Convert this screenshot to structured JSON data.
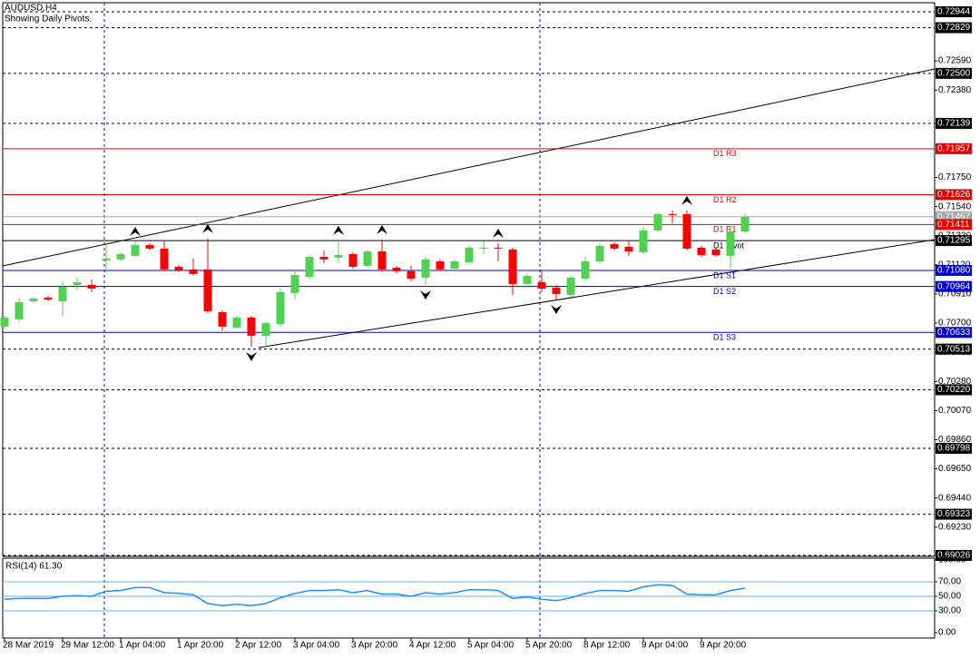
{
  "chart_data": [
    {
      "type": "candlestick",
      "title": "AUDUSD,H4",
      "subtitle": "Showing Daily Pivots.",
      "categories": [
        "28 Mar 2019",
        null,
        null,
        null,
        "29 Mar 12:00",
        null,
        null,
        null,
        "1 Apr 04:00",
        null,
        null,
        null,
        "1 Apr 20:00",
        null,
        null,
        null,
        "2 Apr 12:00",
        null,
        null,
        null,
        "3 Apr 04:00",
        null,
        null,
        null,
        "3 Apr 20:00",
        null,
        null,
        null,
        "4 Apr 12:00",
        null,
        null,
        null,
        "5 Apr 04:00",
        null,
        null,
        null,
        "5 Apr 20:00",
        null,
        null,
        null,
        "8 Apr 12:00",
        null,
        null,
        null,
        "9 Apr 04:00",
        null,
        null,
        null,
        "9 Apr 20:00",
        null,
        null,
        null
      ],
      "open": [
        0.70675,
        0.70727,
        0.70857,
        0.70884,
        0.70857,
        0.70975,
        0.70975,
        0.71152,
        0.71159,
        0.71185,
        0.71263,
        0.71237,
        0.71106,
        0.71087,
        0.71087,
        0.70779,
        0.70668,
        0.7074,
        0.70609,
        0.70694,
        0.70917,
        0.71034,
        0.71178,
        0.71172,
        0.71198,
        0.71113,
        0.71217,
        0.711,
        0.71074,
        0.71028,
        0.71145,
        0.71093,
        0.71139,
        0.71237,
        0.71244,
        0.71231,
        0.70982,
        0.70995,
        0.70956,
        0.70904,
        0.71021,
        0.71145,
        0.7127,
        0.7125,
        0.71211,
        0.71368,
        0.71486,
        0.71486,
        0.71244,
        0.71231,
        0.71185,
        0.71361
      ],
      "high": [
        0.70753,
        0.70884,
        0.7089,
        0.70897,
        0.71002,
        0.71028,
        0.71015,
        0.71263,
        0.71211,
        0.71289,
        0.71276,
        0.71289,
        0.71119,
        0.71165,
        0.71309,
        0.70792,
        0.70753,
        0.70753,
        0.70707,
        0.70949,
        0.7108,
        0.71191,
        0.71224,
        0.71296,
        0.71211,
        0.71231,
        0.71302,
        0.71113,
        0.71113,
        0.71178,
        0.71159,
        0.71159,
        0.71257,
        0.71289,
        0.71276,
        0.71244,
        0.71054,
        0.7108,
        0.70975,
        0.71041,
        0.71178,
        0.71276,
        0.71283,
        0.71289,
        0.71394,
        0.71499,
        0.71512,
        0.71512,
        0.71257,
        0.71244,
        0.71394,
        0.71492
      ],
      "low": [
        0.70662,
        0.70707,
        0.70845,
        0.70857,
        0.70753,
        0.70936,
        0.70923,
        0.71067,
        0.71145,
        0.71178,
        0.71224,
        0.7108,
        0.71067,
        0.71041,
        0.70773,
        0.70642,
        0.70662,
        0.70531,
        0.70524,
        0.70675,
        0.7087,
        0.71021,
        0.71132,
        0.71132,
        0.71093,
        0.711,
        0.71067,
        0.71061,
        0.71002,
        0.70975,
        0.7108,
        0.7108,
        0.71132,
        0.71198,
        0.71145,
        0.70904,
        0.70975,
        0.70923,
        0.7087,
        0.7089,
        0.71002,
        0.71132,
        0.71224,
        0.71185,
        0.71198,
        0.71355,
        0.7142,
        0.71224,
        0.71178,
        0.71178,
        0.711,
        0.71348
      ],
      "close": [
        0.7074,
        0.70851,
        0.70877,
        0.7087,
        0.70962,
        0.70995,
        0.70949,
        0.71165,
        0.71198,
        0.71263,
        0.71237,
        0.71087,
        0.7108,
        0.71054,
        0.70786,
        0.70675,
        0.7074,
        0.70609,
        0.70701,
        0.70923,
        0.71047,
        0.71178,
        0.71159,
        0.71191,
        0.71106,
        0.71217,
        0.71087,
        0.71074,
        0.71021,
        0.71159,
        0.71087,
        0.71145,
        0.71244,
        0.71244,
        0.71237,
        0.70982,
        0.71041,
        0.70949,
        0.7091,
        0.71028,
        0.71145,
        0.71257,
        0.71237,
        0.71217,
        0.71368,
        0.71486,
        0.71479,
        0.71237,
        0.71191,
        0.71191,
        0.71361,
        0.71467
      ],
      "up_color": "#4fd24f",
      "down_color": "#ff0000",
      "ylim": [
        0.69026,
        0.73009
      ],
      "yticks": [
        {
          "value": 0.7259,
          "label": "0.72590"
        },
        {
          "value": 0.7238,
          "label": "0.72380"
        },
        {
          "value": 0.7175,
          "label": "0.71750"
        },
        {
          "value": 0.7154,
          "label": "0.71540"
        },
        {
          "value": 0.7133,
          "label": "0.71330"
        },
        {
          "value": 0.7112,
          "label": "0.71120"
        },
        {
          "value": 0.7091,
          "label": "0.70910"
        },
        {
          "value": 0.707,
          "label": "0.70700"
        },
        {
          "value": 0.7049,
          "label": "0.70490"
        },
        {
          "value": 0.7028,
          "label": "0.70280"
        },
        {
          "value": 0.7007,
          "label": "0.70070"
        },
        {
          "value": 0.6986,
          "label": "0.69860"
        },
        {
          "value": 0.6965,
          "label": "0.69650"
        },
        {
          "value": 0.6944,
          "label": "0.69440"
        },
        {
          "value": 0.6923,
          "label": "0.69230"
        }
      ],
      "levels": [
        {
          "value": 0.72944
        },
        {
          "value": 0.72829
        },
        {
          "value": 0.725,
          "label": "0.72500"
        },
        {
          "value": 0.72139
        },
        {
          "value": 0.70513
        },
        {
          "value": 0.7022,
          "label": "0.70220"
        },
        {
          "value": 0.69798
        },
        {
          "value": 0.69323
        },
        {
          "value": 0.69026
        }
      ],
      "level_color": "#000000",
      "pivots": [
        {
          "name": "D1 R3",
          "value": 0.71957,
          "color": "#e00000"
        },
        {
          "name": "D1 R2",
          "value": 0.71626,
          "color": "#e00000"
        },
        {
          "name": "D1 R1",
          "value": 0.71411,
          "color": "#e00000"
        },
        {
          "name": "D1 Pivot",
          "value": 0.71295,
          "color": "#000000"
        },
        {
          "name": "D1 S1",
          "value": 0.7108,
          "label": "0.71080",
          "color": "#0000cc"
        },
        {
          "name": "D1 S2",
          "value": 0.70964,
          "color": "#0000cc"
        },
        {
          "name": "D1 S3",
          "value": 0.70633,
          "color": "#0000cc"
        }
      ],
      "current_price": {
        "value": 0.71467,
        "color": "#a8a8a8"
      },
      "fractals_up": [
        9,
        14,
        23,
        26,
        34,
        47
      ],
      "fractals_down": [
        17,
        29,
        38
      ]
    },
    {
      "type": "line",
      "title": "RSI(14) 61.30",
      "values": [
        46,
        47,
        47,
        47,
        50,
        51,
        50,
        57,
        58,
        62,
        62,
        55,
        54,
        52,
        40,
        37,
        39,
        37,
        40,
        48,
        54,
        58,
        58,
        59,
        55,
        58,
        53,
        53,
        50,
        55,
        53,
        55,
        59,
        59,
        58,
        47,
        49,
        46,
        44,
        48,
        54,
        58,
        58,
        57,
        63,
        66,
        65,
        53,
        52,
        52,
        58,
        61.3
      ],
      "color": "#1e90ff",
      "ylim": [
        0,
        100
      ],
      "yticks": [
        {
          "value": 100,
          "label": "100.00"
        },
        {
          "value": 70,
          "label": "70.00"
        },
        {
          "value": 50,
          "label": "50.00"
        },
        {
          "value": 30,
          "label": "30.00"
        },
        {
          "value": 0,
          "label": "0.00"
        }
      ],
      "levels": [
        70,
        50,
        30
      ],
      "level_color": "#5fb0e8"
    }
  ]
}
